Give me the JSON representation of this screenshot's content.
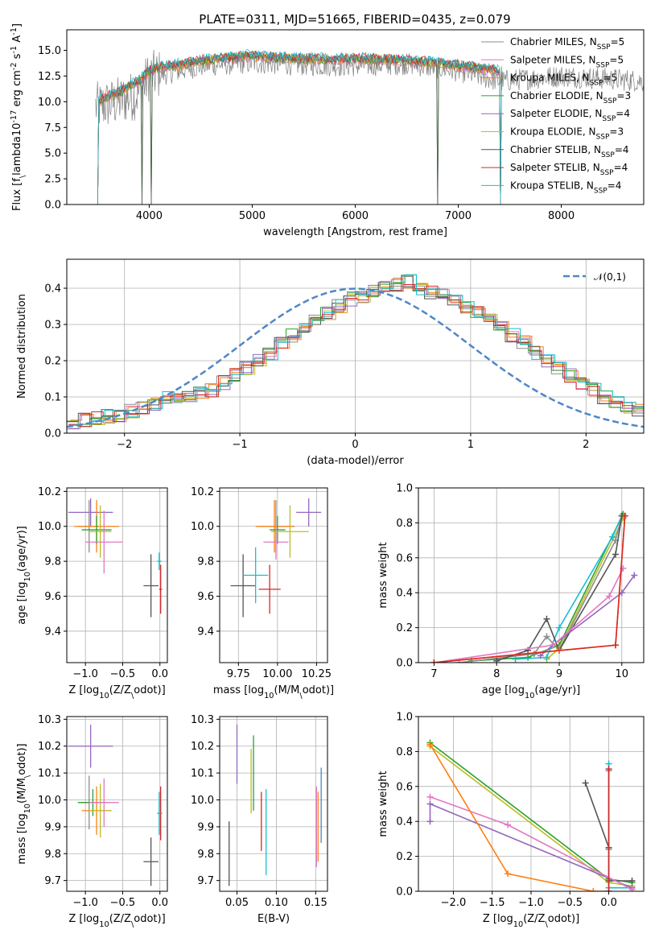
{
  "figure_title": "PLATE=0311, MJD=51665, FIBERID=0435, z=0.079",
  "colors": {
    "Chabrier MILES": "#8c8c8c",
    "Salpeter MILES": "#e377c2",
    "Kroupa MILES": "#ff7f0e",
    "Chabrier ELODIE": "#2ca02c",
    "Salpeter ELODIE": "#9467bd",
    "Kroupa ELODIE": "#bcbd22",
    "Chabrier STELIB": "#555555",
    "Salpeter STELIB": "#d62728",
    "Kroupa STELIB": "#17becf",
    "normal": "#4f86c6"
  },
  "chart_data": [
    {
      "id": "spectrum",
      "type": "line",
      "xlabel": "wavelength [Angstrom, rest frame]",
      "ylabel": "Flux [f$_\\lambda$10$^{-17}$ erg cm$^{-2}$ s$^{-1}$ A$^{-1}$]",
      "xlim": [
        3200,
        8800
      ],
      "ylim": [
        0,
        17
      ],
      "xticks": [
        4000,
        5000,
        6000,
        7000,
        8000
      ],
      "yticks": [
        0.0,
        2.5,
        5.0,
        7.5,
        10.0,
        12.5,
        15.0
      ],
      "legend_position": "right",
      "legend": [
        {
          "label": "Chabrier MILES, N$_{SSP}$=5",
          "color": "#8c8c8c"
        },
        {
          "label": "Salpeter MILES, N$_{SSP}$=5",
          "color": "#e377c2"
        },
        {
          "label": "Kroupa MILES, N$_{SSP}$=5",
          "color": "#ff7f0e"
        },
        {
          "label": "Chabrier ELODIE, N$_{SSP}$=3",
          "color": "#2ca02c"
        },
        {
          "label": "Salpeter ELODIE, N$_{SSP}$=4",
          "color": "#9467bd"
        },
        {
          "label": "Kroupa ELODIE, N$_{SSP}$=3",
          "color": "#bcbd22"
        },
        {
          "label": "Chabrier STELIB, N$_{SSP}$=4",
          "color": "#555555"
        },
        {
          "label": "Salpeter STELIB, N$_{SSP}$=4",
          "color": "#d62728"
        },
        {
          "label": "Kroupa STELIB, N$_{SSP}$=4",
          "color": "#17becf"
        }
      ],
      "observed_envelope": [
        [
          3500,
          10.5
        ],
        [
          3700,
          11.0
        ],
        [
          3900,
          11.8
        ],
        [
          4000,
          13.5
        ],
        [
          4200,
          13.8
        ],
        [
          4500,
          14.5
        ],
        [
          5000,
          14.8
        ],
        [
          5500,
          14.6
        ],
        [
          6000,
          14.5
        ],
        [
          6500,
          14.7
        ],
        [
          7000,
          14.0
        ],
        [
          7400,
          13.0
        ],
        [
          8000,
          13.5
        ],
        [
          8500,
          13.2
        ],
        [
          8800,
          13.0
        ]
      ],
      "model_continuum": [
        [
          3500,
          10.0
        ],
        [
          3600,
          10.5
        ],
        [
          3700,
          10.8
        ],
        [
          3800,
          11.5
        ],
        [
          3900,
          12.0
        ],
        [
          4000,
          13.0
        ],
        [
          4100,
          13.4
        ],
        [
          4300,
          13.6
        ],
        [
          4500,
          14.0
        ],
        [
          4800,
          14.3
        ],
        [
          5000,
          14.5
        ],
        [
          5200,
          14.3
        ],
        [
          5500,
          14.2
        ],
        [
          5800,
          14.1
        ],
        [
          6000,
          14.2
        ],
        [
          6300,
          14.1
        ],
        [
          6500,
          14.0
        ],
        [
          6800,
          13.8
        ],
        [
          7000,
          13.5
        ],
        [
          7200,
          13.3
        ],
        [
          7400,
          13.0
        ]
      ],
      "model_dips": [
        [
          3500,
          0
        ],
        [
          3930,
          0
        ],
        [
          4020,
          0
        ],
        [
          6800,
          0
        ],
        [
          7410,
          0
        ]
      ]
    },
    {
      "id": "residuals",
      "type": "area",
      "xlabel": "(data-model)/error",
      "ylabel": "Normed distribution",
      "xlim": [
        -2.5,
        2.5
      ],
      "ylim": [
        0,
        0.48
      ],
      "xticks": [
        -2,
        -1,
        0,
        1,
        2
      ],
      "yticks": [
        0.0,
        0.1,
        0.2,
        0.3,
        0.4
      ],
      "grid": true,
      "legend": [
        {
          "label": "$\\mathcal{N}(0,1)$",
          "color": "#4f86c6",
          "style": "dashed"
        }
      ],
      "bins": {
        "start": -2.5,
        "width": 0.1,
        "heights": [
          0.03,
          0.035,
          0.04,
          0.045,
          0.05,
          0.06,
          0.07,
          0.08,
          0.1,
          0.1,
          0.1,
          0.11,
          0.12,
          0.14,
          0.16,
          0.18,
          0.2,
          0.22,
          0.25,
          0.27,
          0.29,
          0.31,
          0.33,
          0.35,
          0.37,
          0.38,
          0.39,
          0.4,
          0.41,
          0.42,
          0.4,
          0.39,
          0.38,
          0.37,
          0.35,
          0.33,
          0.31,
          0.29,
          0.27,
          0.25,
          0.22,
          0.2,
          0.18,
          0.16,
          0.14,
          0.12,
          0.1,
          0.09,
          0.07,
          0.06,
          0.05
        ]
      }
    },
    {
      "id": "age_vs_Z",
      "type": "scatter",
      "xlabel": "Z [log$_{10}$(Z/Z$_\\odot$)]",
      "ylabel": "age  [log$_{10}$(age/yr)]",
      "xlim": [
        -1.25,
        0.1
      ],
      "ylim": [
        9.22,
        10.22
      ],
      "xticks": [
        -1.0,
        -0.5,
        0.0
      ],
      "yticks": [
        9.4,
        9.6,
        9.8,
        10.0,
        10.2
      ],
      "grid": true,
      "points": [
        {
          "color": "#9467bd",
          "x": -0.93,
          "y": 10.08,
          "xerr": 0.3,
          "yerr": 0.08
        },
        {
          "color": "#8c8c8c",
          "x": -0.95,
          "y": 10.0,
          "xerr": 0.15,
          "yerr": 0.15
        },
        {
          "color": "#ff7f0e",
          "x": -0.85,
          "y": 10.0,
          "xerr": 0.3,
          "yerr": 0.15
        },
        {
          "color": "#2ca02c",
          "x": -0.85,
          "y": 9.98,
          "xerr": 0.2,
          "yerr": 0.08
        },
        {
          "color": "#bcbd22",
          "x": -0.8,
          "y": 9.97,
          "xerr": 0.15,
          "yerr": 0.15
        },
        {
          "color": "#e377c2",
          "x": -0.75,
          "y": 9.91,
          "xerr": 0.25,
          "yerr": 0.18
        },
        {
          "color": "#555555",
          "x": -0.12,
          "y": 9.66,
          "xerr": 0.1,
          "yerr": 0.18
        },
        {
          "color": "#d62728",
          "x": 0.01,
          "y": 9.64,
          "xerr": 0.02,
          "yerr": 0.14
        },
        {
          "color": "#17becf",
          "x": -0.01,
          "y": 9.8,
          "xerr": 0.03,
          "yerr": 0.05
        }
      ]
    },
    {
      "id": "age_vs_mass",
      "type": "scatter",
      "xlabel": "mass [log$_{10}$(M/M$_\\odot$)]",
      "ylabel": "",
      "xlim": [
        9.63,
        10.32
      ],
      "ylim": [
        9.22,
        10.22
      ],
      "xticks": [
        9.75,
        10.0,
        10.25
      ],
      "yticks": [
        9.4,
        9.6,
        9.8,
        10.0,
        10.2
      ],
      "grid": true,
      "points": [
        {
          "color": "#9467bd",
          "x": 10.2,
          "y": 10.08,
          "xerr": 0.08,
          "yerr": 0.08
        },
        {
          "color": "#8c8c8c",
          "x": 9.99,
          "y": 10.0,
          "xerr": 0.12,
          "yerr": 0.15
        },
        {
          "color": "#ff7f0e",
          "x": 9.98,
          "y": 10.0,
          "xerr": 0.12,
          "yerr": 0.15
        },
        {
          "color": "#2ca02c",
          "x": 10.0,
          "y": 9.98,
          "xerr": 0.05,
          "yerr": 0.08
        },
        {
          "color": "#bcbd22",
          "x": 10.08,
          "y": 9.97,
          "xerr": 0.12,
          "yerr": 0.15
        },
        {
          "color": "#e377c2",
          "x": 9.99,
          "y": 9.91,
          "xerr": 0.08,
          "yerr": 0.1
        },
        {
          "color": "#555555",
          "x": 9.78,
          "y": 9.66,
          "xerr": 0.08,
          "yerr": 0.18
        },
        {
          "color": "#d62728",
          "x": 9.95,
          "y": 9.64,
          "xerr": 0.07,
          "yerr": 0.14
        },
        {
          "color": "#17becf",
          "x": 9.86,
          "y": 9.72,
          "xerr": 0.08,
          "yerr": 0.16
        }
      ]
    },
    {
      "id": "weight_vs_age",
      "type": "line",
      "xlabel": "age  [log$_{10}$(age/yr)]",
      "ylabel": "mass weight",
      "xlim": [
        6.75,
        10.35
      ],
      "ylim": [
        0,
        1
      ],
      "xticks": [
        7,
        8,
        9,
        10
      ],
      "yticks": [
        0.0,
        0.2,
        0.4,
        0.6,
        0.8,
        1.0
      ],
      "grid": true,
      "series": [
        {
          "color": "#2ca02c",
          "x": [
            7.6,
            8.5,
            9.0,
            10.02
          ],
          "y": [
            0.01,
            0.03,
            0.1,
            0.85
          ]
        },
        {
          "color": "#bcbd22",
          "x": [
            8.8,
            9.0,
            10.03
          ],
          "y": [
            0.02,
            0.08,
            0.83
          ]
        },
        {
          "color": "#17becf",
          "x": [
            8.3,
            8.8,
            9.0,
            9.85,
            10.0
          ],
          "y": [
            0.02,
            0.03,
            0.2,
            0.72,
            0.84
          ]
        },
        {
          "color": "#8c8c8c",
          "x": [
            7.4,
            8.6,
            8.8,
            9.0,
            9.9,
            10.0
          ],
          "y": [
            0.0,
            0.05,
            0.15,
            0.07,
            0.7,
            0.84
          ]
        },
        {
          "color": "#555555",
          "x": [
            8.0,
            8.5,
            8.8,
            9.0,
            9.9,
            10.0
          ],
          "y": [
            0.01,
            0.07,
            0.25,
            0.07,
            0.62,
            0.84
          ]
        },
        {
          "color": "#9467bd",
          "x": [
            8.7,
            8.9,
            10.0,
            10.2
          ],
          "y": [
            0.04,
            0.1,
            0.4,
            0.5
          ]
        },
        {
          "color": "#e377c2",
          "x": [
            7.0,
            8.9,
            9.8,
            10.02
          ],
          "y": [
            0.0,
            0.1,
            0.38,
            0.54
          ]
        },
        {
          "color": "#ff7f0e",
          "x": [
            7.0,
            9.0,
            9.9,
            10.05
          ],
          "y": [
            0.0,
            0.07,
            0.1,
            0.84
          ]
        },
        {
          "color": "#d62728",
          "x": [
            7.0,
            9.9,
            10.05
          ],
          "y": [
            0.0,
            0.1,
            0.84
          ]
        }
      ]
    },
    {
      "id": "mass_vs_Z",
      "type": "scatter",
      "xlabel": "Z [log$_{10}$(Z/Z$_\\odot$)]",
      "ylabel": "mass [log$_{10}$(M/M$_\\odot$)]",
      "xlim": [
        -1.25,
        0.1
      ],
      "ylim": [
        9.66,
        10.31
      ],
      "xticks": [
        -1.0,
        -0.5,
        0.0
      ],
      "yticks": [
        9.7,
        9.8,
        9.9,
        10.0,
        10.1,
        10.2,
        10.3
      ],
      "grid": true,
      "points": [
        {
          "color": "#9467bd",
          "x": -0.93,
          "y": 10.2,
          "xerr": 0.3,
          "yerr": 0.08
        },
        {
          "color": "#8c8c8c",
          "x": -0.95,
          "y": 9.99,
          "xerr": 0.15,
          "yerr": 0.1
        },
        {
          "color": "#2ca02c",
          "x": -0.9,
          "y": 9.99,
          "xerr": 0.2,
          "yerr": 0.05
        },
        {
          "color": "#ff7f0e",
          "x": -0.85,
          "y": 9.96,
          "xerr": 0.2,
          "yerr": 0.09
        },
        {
          "color": "#bcbd22",
          "x": -0.8,
          "y": 9.96,
          "xerr": 0.15,
          "yerr": 0.1
        },
        {
          "color": "#e377c2",
          "x": -0.75,
          "y": 9.99,
          "xerr": 0.2,
          "yerr": 0.09
        },
        {
          "color": "#555555",
          "x": -0.12,
          "y": 9.77,
          "xerr": 0.1,
          "yerr": 0.09
        },
        {
          "color": "#d62728",
          "x": 0.01,
          "y": 9.95,
          "xerr": 0.02,
          "yerr": 0.1
        },
        {
          "color": "#17becf",
          "x": -0.01,
          "y": 9.95,
          "xerr": 0.03,
          "yerr": 0.08
        }
      ]
    },
    {
      "id": "mass_vs_EBV",
      "type": "scatter",
      "xlabel": "E(B-V)",
      "ylabel": "",
      "xlim": [
        0.028,
        0.165
      ],
      "ylim": [
        9.66,
        10.31
      ],
      "xticks": [
        0.05,
        0.1,
        0.15
      ],
      "yticks": [
        9.7,
        9.8,
        9.9,
        10.0,
        10.1,
        10.2,
        10.3
      ],
      "grid": true,
      "points": [
        {
          "color": "#555555",
          "x": 0.04,
          "y": 9.8,
          "yerr": 0.12
        },
        {
          "color": "#9467bd",
          "x": 0.05,
          "y": 10.17,
          "yerr": 0.11
        },
        {
          "color": "#bcbd22",
          "x": 0.068,
          "y": 10.07,
          "yerr": 0.12
        },
        {
          "color": "#2ca02c",
          "x": 0.071,
          "y": 10.1,
          "yerr": 0.14
        },
        {
          "color": "#d62728",
          "x": 0.081,
          "y": 9.92,
          "yerr": 0.11
        },
        {
          "color": "#17becf",
          "x": 0.087,
          "y": 9.88,
          "yerr": 0.16
        },
        {
          "color": "#e377c2",
          "x": 0.151,
          "y": 9.9,
          "yerr": 0.15
        },
        {
          "color": "#ff7f0e",
          "x": 0.153,
          "y": 9.9,
          "yerr": 0.13
        },
        {
          "color": "#4f86c6",
          "x": 0.157,
          "y": 9.98,
          "yerr": 0.14
        }
      ]
    },
    {
      "id": "weight_vs_Z",
      "type": "line",
      "xlabel": "Z [log$_{10}$(Z/Z$_\\odot$)]",
      "ylabel": "mass weight",
      "xlim": [
        -2.45,
        0.45
      ],
      "ylim": [
        0,
        1
      ],
      "xticks": [
        -2.0,
        -1.5,
        -1.0,
        -0.5,
        0.0
      ],
      "yticks": [
        0.0,
        0.2,
        0.4,
        0.6,
        0.8,
        1.0
      ],
      "grid": true,
      "series": [
        {
          "color": "#2ca02c",
          "x": [
            -2.3,
            0.0,
            0.3
          ],
          "y": [
            0.85,
            0.07,
            0.05
          ]
        },
        {
          "color": "#bcbd22",
          "x": [
            -2.3,
            0.0,
            0.3
          ],
          "y": [
            0.83,
            0.05,
            0.03
          ]
        },
        {
          "color": "#555555",
          "x": [
            -0.3,
            0.0,
            0.0,
            0.3
          ],
          "y": [
            0.62,
            0.25,
            0.06,
            0.06
          ]
        },
        {
          "color": "#8c8c8c",
          "x": [
            0.0,
            0.0
          ],
          "y": [
            0.69,
            0.24
          ]
        },
        {
          "color": "#17becf",
          "x": [
            0.0,
            0.0,
            0.3
          ],
          "y": [
            0.73,
            0.02,
            0.02
          ]
        },
        {
          "color": "#9467bd",
          "x": [
            -2.3,
            -2.3,
            0.3
          ],
          "y": [
            0.4,
            0.5,
            0.02
          ]
        },
        {
          "color": "#e377c2",
          "x": [
            -2.3,
            -1.3,
            0.3
          ],
          "y": [
            0.54,
            0.38,
            0.01
          ]
        },
        {
          "color": "#ff7f0e",
          "x": [
            -2.3,
            -1.3,
            -0.2,
            0.0
          ],
          "y": [
            0.84,
            0.1,
            0.0,
            0.0
          ]
        },
        {
          "color": "#d62728",
          "x": [
            0.0,
            0.0
          ],
          "y": [
            0.7,
            0.0
          ]
        }
      ]
    }
  ]
}
